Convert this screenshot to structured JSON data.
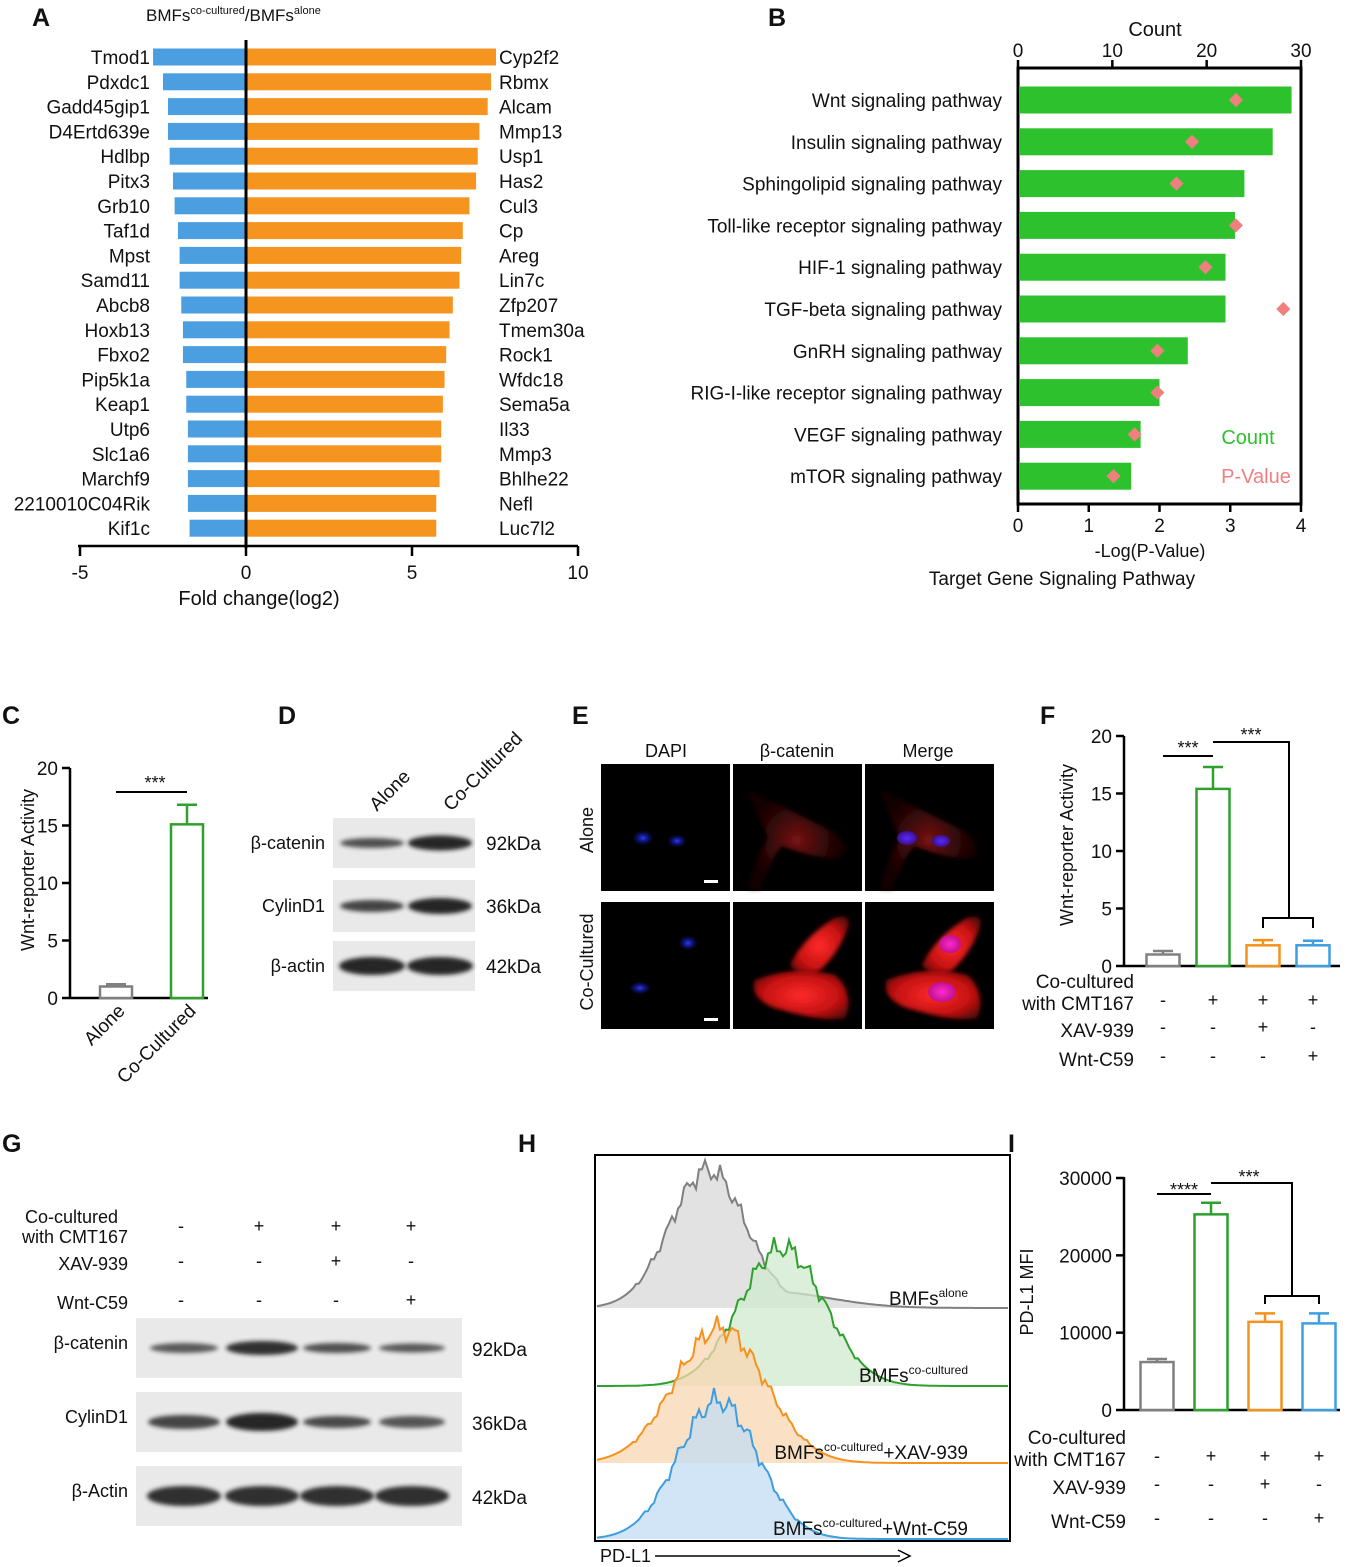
{
  "panels": {
    "A": "A",
    "B": "B",
    "C": "C",
    "D": "D",
    "E": "E",
    "F": "F",
    "G": "G",
    "H": "H",
    "I": "I"
  },
  "colors": {
    "down": "#4b9fe0",
    "up": "#f5951f",
    "count_green": "#2ec12e",
    "pvalue_pink": "#f08080",
    "alone_gray": "#808080",
    "cocultured_green": "#2ea02e",
    "xav_orange": "#f5921e",
    "wnt_blue": "#3f9ee0"
  },
  "chart_data": [
    {
      "panel": "A",
      "type": "bar",
      "title_base": "BMFs",
      "title_sup1": "co-cultured",
      "title_mid": "/BMFs",
      "title_sup2": "alone",
      "xlabel": "Fold change(log2)",
      "xlim": [
        -5,
        10
      ],
      "xticks": [
        -5,
        0,
        5,
        10
      ],
      "down_genes": [
        "Tmod1",
        "Pdxdc1",
        "Gadd45gip1",
        "D4Ertd639e",
        "Hdlbp",
        "Pitx3",
        "Grb10",
        "Taf1d",
        "Mpst",
        "Samd11",
        "Abcb8",
        "Hoxb13",
        "Fbxo2",
        "Pip5k1a",
        "Keap1",
        "Utp6",
        "Slc1a6",
        "Marchf9",
        "2210010C04Rik",
        "Kif1c"
      ],
      "down_values": [
        -2.8,
        -2.5,
        -2.35,
        -2.35,
        -2.3,
        -2.2,
        -2.15,
        -2.05,
        -2.0,
        -2.0,
        -1.95,
        -1.9,
        -1.9,
        -1.8,
        -1.8,
        -1.75,
        -1.75,
        -1.75,
        -1.75,
        -1.7
      ],
      "up_genes": [
        "Cyp2f2",
        "Rbmx",
        "Alcam",
        "Mmp13",
        "Usp1",
        "Has2",
        "Cul3",
        "Cp",
        "Areg",
        "Lin7c",
        "Zfp207",
        "Tmem30a",
        "Rock1",
        "Wfdc18",
        "Sema5a",
        "Il33",
        "Mmp3",
        "Bhlhe22",
        "Nefl",
        "Luc7l2"
      ],
      "up_values": [
        7.5,
        7.35,
        7.25,
        7.0,
        6.95,
        6.9,
        6.7,
        6.5,
        6.45,
        6.4,
        6.2,
        6.1,
        6.0,
        5.95,
        5.9,
        5.85,
        5.85,
        5.8,
        5.7,
        5.7
      ]
    },
    {
      "panel": "B",
      "type": "bar",
      "xlabel_top": "Count",
      "xlabel_bottom": "-Log(P-Value)",
      "caption": "Target Gene Signaling Pathway",
      "count_ticks": [
        0,
        10,
        20,
        30
      ],
      "count_lim": [
        0,
        30
      ],
      "p_ticks": [
        0,
        1,
        2,
        3,
        4
      ],
      "p_lim": [
        0,
        4
      ],
      "categories": [
        "Wnt signaling pathway",
        "Insulin signaling pathway",
        "Sphingolipid signaling pathway",
        "Toll-like receptor signaling pathway",
        "HIF-1 signaling pathway",
        "TGF-beta signaling pathway",
        "GnRH signaling pathway",
        "RIG-I-like receptor signaling pathway",
        "VEGF signaling pathway",
        "mTOR signaling pathway"
      ],
      "counts": [
        29,
        27,
        24,
        23,
        22,
        22,
        18,
        15,
        13,
        12
      ],
      "pvalues": [
        3.08,
        2.46,
        2.24,
        3.08,
        2.65,
        3.75,
        1.97,
        1.97,
        1.65,
        1.35
      ],
      "legend": [
        "Count",
        "P-Value"
      ]
    },
    {
      "panel": "C",
      "type": "bar",
      "ylabel": "Wnt-reporter Activity",
      "categories": [
        "Alone",
        "Co-Cultured"
      ],
      "values": [
        1.0,
        15.1
      ],
      "errors": [
        0.2,
        1.7
      ],
      "ylim": [
        0,
        20
      ],
      "yticks": [
        0,
        5,
        10,
        15,
        20
      ],
      "significance": "***"
    },
    {
      "panel": "F",
      "type": "bar",
      "ylabel": "Wnt-reporter Activity",
      "values": [
        1.0,
        15.4,
        1.8,
        1.8
      ],
      "errors": [
        0.3,
        1.9,
        0.45,
        0.4
      ],
      "ylim": [
        0,
        20
      ],
      "yticks": [
        0,
        5,
        10,
        15,
        20
      ],
      "significance": [
        "***",
        "***"
      ],
      "conditions": [
        {
          "label": "Co-cultured",
          "label2": "with CMT167",
          "signs": [
            "-",
            "+",
            "+",
            "+"
          ]
        },
        {
          "label": "XAV-939",
          "signs": [
            "-",
            "-",
            "+",
            "-"
          ]
        },
        {
          "label": "Wnt-C59",
          "signs": [
            "-",
            "-",
            "-",
            "+"
          ]
        }
      ]
    },
    {
      "panel": "I",
      "type": "bar",
      "ylabel": "PD-L1 MFI",
      "values": [
        6200,
        25300,
        11400,
        11200
      ],
      "errors": [
        400,
        1500,
        1100,
        1300
      ],
      "ylim": [
        0,
        30000
      ],
      "yticks": [
        0,
        10000,
        20000,
        30000
      ],
      "significance": [
        "****",
        "***"
      ],
      "conditions": [
        {
          "label": "Co-cultured",
          "label2": "with CMT167",
          "signs": [
            "-",
            "+",
            "+",
            "+"
          ]
        },
        {
          "label": "XAV-939",
          "signs": [
            "-",
            "-",
            "+",
            "-"
          ]
        },
        {
          "label": "Wnt-C59",
          "signs": [
            "-",
            "-",
            "-",
            "+"
          ]
        }
      ]
    },
    {
      "panel": "H",
      "type": "area",
      "xlabel": "PD-L1",
      "series": [
        {
          "name_base": "BMFs",
          "name_sup": "alone",
          "name_suffix": ""
        },
        {
          "name_base": "BMFs",
          "name_sup": "co-cultured",
          "name_suffix": ""
        },
        {
          "name_base": "BMFs",
          "name_sup": "co-cultured",
          "name_suffix": "+XAV-939"
        },
        {
          "name_base": "BMFs",
          "name_sup": "co-cultured",
          "name_suffix": "+Wnt-C59"
        }
      ]
    }
  ],
  "panel_D": {
    "lanes": [
      "Alone",
      "Co-Cultured"
    ],
    "proteins": [
      "β-catenin",
      "CylinD1",
      "β-actin"
    ],
    "sizes": [
      "92kDa",
      "36kDa",
      "42kDa"
    ]
  },
  "panel_E": {
    "columns": [
      "DAPI",
      "β-catenin",
      "Merge"
    ],
    "rows": [
      "Alone",
      "Co-Cultured"
    ]
  },
  "panel_G": {
    "conditions": [
      {
        "label": "Co-cultured",
        "label2": "with CMT167",
        "signs": [
          "-",
          "+",
          "+",
          "+"
        ]
      },
      {
        "label": "XAV-939",
        "signs": [
          "-",
          "-",
          "+",
          "-"
        ]
      },
      {
        "label": "Wnt-C59",
        "signs": [
          "-",
          "-",
          "-",
          "+"
        ]
      }
    ],
    "proteins": [
      "β-catenin",
      "CylinD1",
      "β-Actin"
    ],
    "sizes": [
      "92kDa",
      "36kDa",
      "42kDa"
    ]
  }
}
